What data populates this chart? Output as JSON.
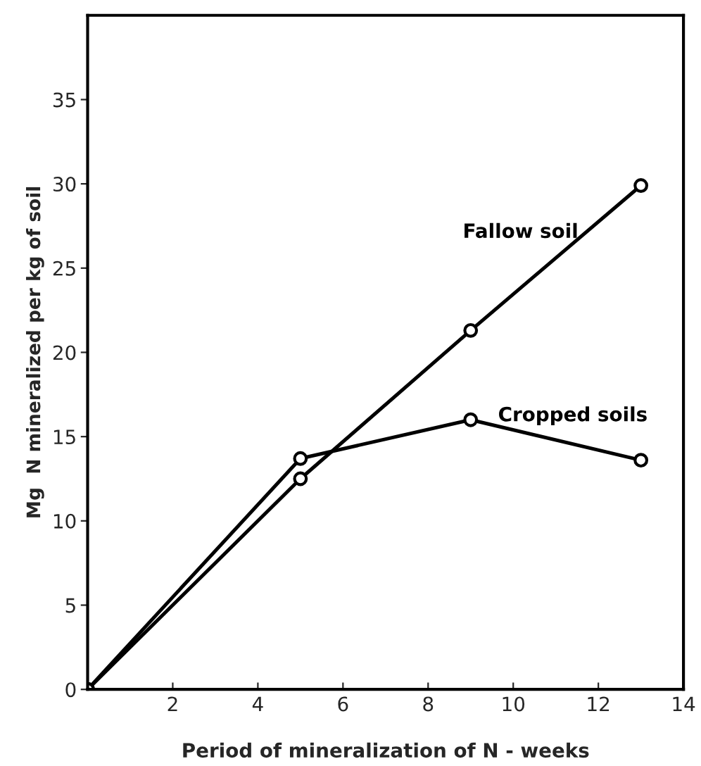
{
  "chart_data": {
    "type": "line",
    "xlabel": "Period of mineralization of N - weeks",
    "ylabel": "Mg  N mineralized per kg of soil",
    "x": [
      0,
      5,
      9,
      13
    ],
    "series": [
      {
        "name": "Fallow soil",
        "color": "#000000",
        "values": [
          0,
          12.5,
          21.3,
          29.9
        ]
      },
      {
        "name": "Cropped soils",
        "color": "#000000",
        "values": [
          0,
          13.7,
          16.0,
          13.6
        ]
      }
    ],
    "xlim": [
      0,
      14
    ],
    "xticks": [
      2,
      4,
      6,
      8,
      10,
      12,
      14
    ],
    "ylim": [
      0,
      40
    ],
    "yticks": [
      0,
      5,
      10,
      15,
      20,
      25,
      30,
      35
    ],
    "marker": "circle",
    "line_style": "solid",
    "grid": false,
    "legend": false
  }
}
